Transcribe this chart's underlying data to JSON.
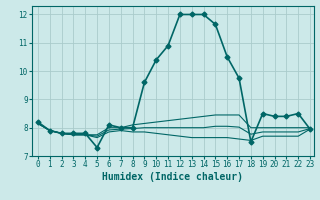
{
  "xlabel": "Humidex (Indice chaleur)",
  "ylabel": "",
  "xlim": [
    -0.5,
    23.3
  ],
  "ylim": [
    7.0,
    12.3
  ],
  "background_color": "#cce9e9",
  "grid_color": "#aacccc",
  "line_color": "#006666",
  "lines": [
    {
      "x": [
        0,
        1,
        2,
        3,
        4,
        5,
        6,
        7,
        8,
        9,
        10,
        11,
        12,
        13,
        14,
        15,
        16,
        17,
        18,
        19,
        20,
        21,
        22,
        23
      ],
      "y": [
        8.2,
        7.9,
        7.8,
        7.8,
        7.8,
        7.3,
        8.1,
        8.0,
        8.0,
        9.6,
        10.4,
        10.9,
        12.0,
        12.0,
        12.0,
        11.65,
        10.5,
        9.75,
        7.5,
        8.5,
        8.4,
        8.4,
        8.5,
        7.95
      ],
      "marker": "D",
      "markersize": 2.5,
      "linewidth": 1.2
    },
    {
      "x": [
        0,
        1,
        2,
        3,
        4,
        5,
        6,
        7,
        8,
        9,
        10,
        11,
        12,
        13,
        14,
        15,
        16,
        17,
        18,
        19,
        20,
        21,
        22,
        23
      ],
      "y": [
        8.15,
        7.9,
        7.8,
        7.75,
        7.75,
        7.75,
        8.0,
        8.0,
        8.1,
        8.15,
        8.2,
        8.25,
        8.3,
        8.35,
        8.4,
        8.45,
        8.45,
        8.45,
        8.0,
        8.0,
        8.0,
        8.0,
        8.0,
        8.0
      ],
      "marker": null,
      "markersize": 0,
      "linewidth": 0.8
    },
    {
      "x": [
        0,
        1,
        2,
        3,
        4,
        5,
        6,
        7,
        8,
        9,
        10,
        11,
        12,
        13,
        14,
        15,
        16,
        17,
        18,
        19,
        20,
        21,
        22,
        23
      ],
      "y": [
        8.15,
        7.9,
        7.8,
        7.75,
        7.75,
        7.65,
        7.85,
        7.9,
        7.85,
        7.85,
        7.8,
        7.75,
        7.7,
        7.65,
        7.65,
        7.65,
        7.65,
        7.6,
        7.55,
        7.7,
        7.7,
        7.7,
        7.7,
        7.95
      ],
      "marker": null,
      "markersize": 0,
      "linewidth": 0.8
    },
    {
      "x": [
        0,
        1,
        2,
        3,
        4,
        5,
        6,
        7,
        8,
        9,
        10,
        11,
        12,
        13,
        14,
        15,
        16,
        17,
        18,
        19,
        20,
        21,
        22,
        23
      ],
      "y": [
        8.15,
        7.9,
        7.8,
        7.75,
        7.75,
        7.7,
        7.92,
        7.95,
        7.97,
        8.0,
        8.0,
        8.0,
        8.0,
        8.0,
        8.0,
        8.05,
        8.05,
        8.02,
        7.77,
        7.85,
        7.85,
        7.85,
        7.85,
        7.97
      ],
      "marker": null,
      "markersize": 0,
      "linewidth": 0.8
    }
  ],
  "yticks": [
    7,
    8,
    9,
    10,
    11,
    12
  ],
  "xticks": [
    0,
    1,
    2,
    3,
    4,
    5,
    6,
    7,
    8,
    9,
    10,
    11,
    12,
    13,
    14,
    15,
    16,
    17,
    18,
    19,
    20,
    21,
    22,
    23
  ],
  "tick_fontsize": 5.5,
  "xlabel_fontsize": 7.0
}
